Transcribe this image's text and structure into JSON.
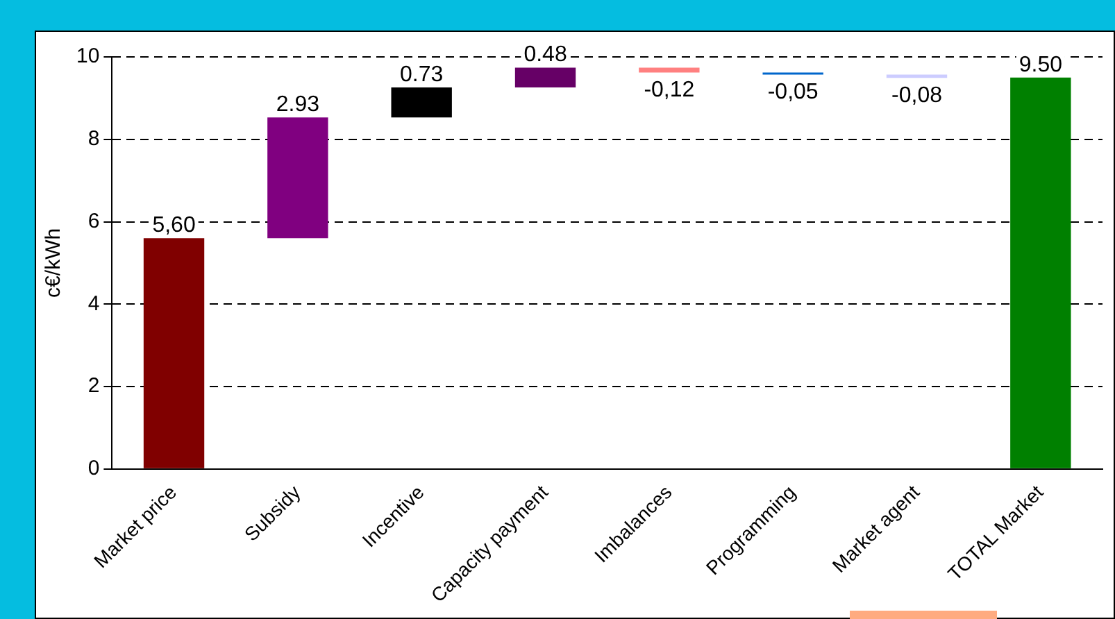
{
  "chart_data": {
    "type": "bar",
    "ylabel": "c€/kWh",
    "categories": [
      "Market price",
      "Subsidy",
      "Incentive",
      "Capacity payment",
      "Imbalances",
      "Programming",
      "Market agent",
      "TOTAL Market"
    ],
    "values": [
      5.6,
      2.93,
      0.73,
      0.48,
      -0.12,
      -0.05,
      -0.08,
      9.5
    ],
    "base": [
      0,
      5.6,
      8.53,
      9.26,
      9.74,
      9.62,
      9.57,
      0
    ],
    "colors": [
      "#800000",
      "#800080",
      "#000000",
      "#660066",
      "#ff8080",
      "#0066cc",
      "#ccccff",
      "#008000"
    ],
    "value_labels": [
      "5,60",
      "2.93",
      "0.73",
      "0.48",
      "-0,12",
      "-0,05",
      "-0,08",
      "9.50"
    ],
    "ylim": [
      0,
      10
    ],
    "yticks": [
      0,
      2,
      4,
      6,
      8,
      10
    ],
    "grid": "y",
    "legend": false
  }
}
